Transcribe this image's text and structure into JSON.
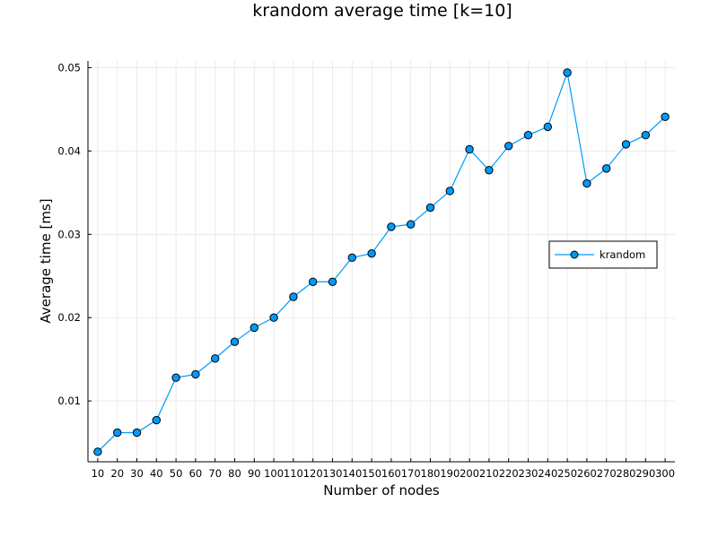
{
  "chart_data": {
    "type": "line",
    "title": "krandom average time [k=10]",
    "xlabel": "Number of nodes",
    "ylabel": "Average time [ms]",
    "x": [
      10,
      20,
      30,
      40,
      50,
      60,
      70,
      80,
      90,
      100,
      110,
      120,
      130,
      140,
      150,
      160,
      170,
      180,
      190,
      200,
      210,
      220,
      230,
      240,
      250,
      260,
      270,
      280,
      290,
      300
    ],
    "xticks": [
      "10",
      "20",
      "30",
      "40",
      "50",
      "60",
      "70",
      "80",
      "90",
      "100",
      "110",
      "120",
      "130",
      "140",
      "150",
      "160",
      "170",
      "180",
      "190",
      "200",
      "210",
      "220",
      "230",
      "240",
      "250",
      "260",
      "270",
      "280",
      "290",
      "300"
    ],
    "yticks": [
      0.01,
      0.02,
      0.03,
      0.04,
      0.05
    ],
    "ytick_labels": [
      "0.01",
      "0.02",
      "0.03",
      "0.04",
      "0.05"
    ],
    "xlim": [
      5,
      305
    ],
    "ylim": [
      0.0027,
      0.0508
    ],
    "grid": true,
    "legend_position": "right",
    "series": [
      {
        "name": "krandom",
        "color": "#009af9",
        "marker": "circle",
        "values": [
          0.0039,
          0.0062,
          0.0062,
          0.0077,
          0.0128,
          0.0132,
          0.0151,
          0.0171,
          0.0188,
          0.02,
          0.0225,
          0.0243,
          0.0243,
          0.0272,
          0.0277,
          0.0309,
          0.0312,
          0.0332,
          0.0352,
          0.0402,
          0.0377,
          0.0406,
          0.0419,
          0.0429,
          0.0494,
          0.0361,
          0.0379,
          0.0408,
          0.0419,
          0.0441
        ]
      }
    ]
  }
}
